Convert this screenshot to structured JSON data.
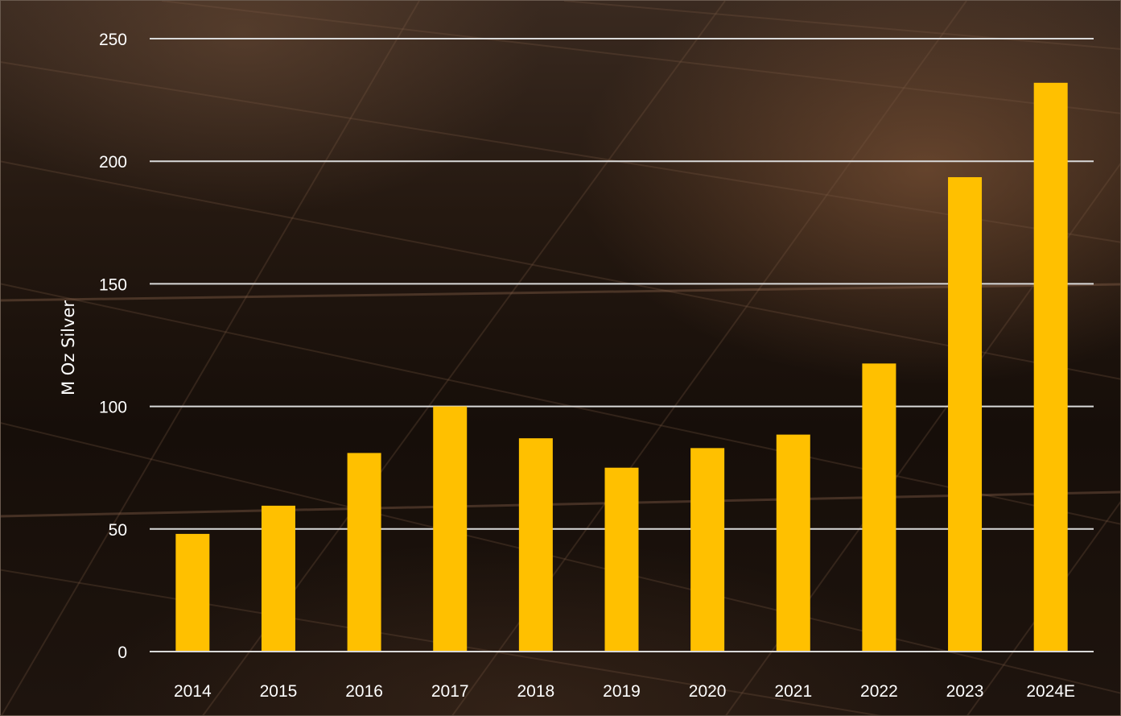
{
  "chart_data": {
    "type": "bar",
    "categories": [
      "2014",
      "2015",
      "2016",
      "2017",
      "2018",
      "2019",
      "2020",
      "2021",
      "2022",
      "2023",
      "2024E"
    ],
    "values": [
      48,
      59.5,
      81,
      100,
      87,
      75,
      83,
      88.5,
      117.5,
      193.5,
      232
    ],
    "title": "",
    "xlabel": "",
    "ylabel": "M Oz Silver",
    "ylim": [
      0,
      250
    ],
    "yticks": [
      "0",
      "50",
      "100",
      "150",
      "200",
      "250"
    ],
    "grid": "horizontal",
    "legend": "none",
    "bar_color": "#ffc000",
    "grid_color": "#d9d9d9",
    "text_color": "#ffffff"
  }
}
